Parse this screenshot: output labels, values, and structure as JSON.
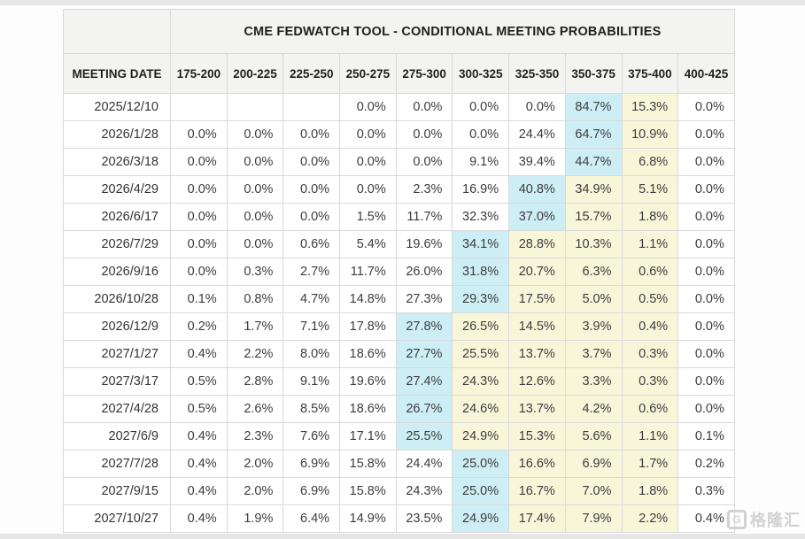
{
  "colors": {
    "highlight_blue": "#cdeef4",
    "highlight_yellow": "#f7f6d9",
    "header_bg": "#f3f3f2"
  },
  "watermark": {
    "logo": "G",
    "text": "格隆汇"
  },
  "chart_data": {
    "type": "table",
    "title": "CME FEDWATCH TOOL - CONDITIONAL MEETING PROBABILITIES",
    "corner_header": "MEETING DATE",
    "columns": [
      "175-200",
      "200-225",
      "225-250",
      "250-275",
      "275-300",
      "300-325",
      "325-350",
      "350-375",
      "375-400",
      "400-425"
    ],
    "rows": [
      {
        "date": "2025/12/10",
        "values": [
          "",
          "",
          "",
          "0.0%",
          "0.0%",
          "0.0%",
          "0.0%",
          "84.7%",
          "15.3%",
          "0.0%"
        ],
        "blue": 7,
        "yellow": [
          8
        ]
      },
      {
        "date": "2026/1/28",
        "values": [
          "0.0%",
          "0.0%",
          "0.0%",
          "0.0%",
          "0.0%",
          "0.0%",
          "24.4%",
          "64.7%",
          "10.9%",
          "0.0%"
        ],
        "blue": 7,
        "yellow": [
          8
        ]
      },
      {
        "date": "2026/3/18",
        "values": [
          "0.0%",
          "0.0%",
          "0.0%",
          "0.0%",
          "0.0%",
          "9.1%",
          "39.4%",
          "44.7%",
          "6.8%",
          "0.0%"
        ],
        "blue": 7,
        "yellow": [
          8
        ]
      },
      {
        "date": "2026/4/29",
        "values": [
          "0.0%",
          "0.0%",
          "0.0%",
          "0.0%",
          "2.3%",
          "16.9%",
          "40.8%",
          "34.9%",
          "5.1%",
          "0.0%"
        ],
        "blue": 6,
        "yellow": [
          7,
          8
        ]
      },
      {
        "date": "2026/6/17",
        "values": [
          "0.0%",
          "0.0%",
          "0.0%",
          "1.5%",
          "11.7%",
          "32.3%",
          "37.0%",
          "15.7%",
          "1.8%",
          "0.0%"
        ],
        "blue": 6,
        "yellow": [
          7,
          8
        ]
      },
      {
        "date": "2026/7/29",
        "values": [
          "0.0%",
          "0.0%",
          "0.6%",
          "5.4%",
          "19.6%",
          "34.1%",
          "28.8%",
          "10.3%",
          "1.1%",
          "0.0%"
        ],
        "blue": 5,
        "yellow": [
          6,
          7,
          8
        ]
      },
      {
        "date": "2026/9/16",
        "values": [
          "0.0%",
          "0.3%",
          "2.7%",
          "11.7%",
          "26.0%",
          "31.8%",
          "20.7%",
          "6.3%",
          "0.6%",
          "0.0%"
        ],
        "blue": 5,
        "yellow": [
          6,
          7,
          8
        ]
      },
      {
        "date": "2026/10/28",
        "values": [
          "0.1%",
          "0.8%",
          "4.7%",
          "14.8%",
          "27.3%",
          "29.3%",
          "17.5%",
          "5.0%",
          "0.5%",
          "0.0%"
        ],
        "blue": 5,
        "yellow": [
          6,
          7,
          8
        ]
      },
      {
        "date": "2026/12/9",
        "values": [
          "0.2%",
          "1.7%",
          "7.1%",
          "17.8%",
          "27.8%",
          "26.5%",
          "14.5%",
          "3.9%",
          "0.4%",
          "0.0%"
        ],
        "blue": 4,
        "yellow": [
          5,
          6,
          7,
          8
        ]
      },
      {
        "date": "2027/1/27",
        "values": [
          "0.4%",
          "2.2%",
          "8.0%",
          "18.6%",
          "27.7%",
          "25.5%",
          "13.7%",
          "3.7%",
          "0.3%",
          "0.0%"
        ],
        "blue": 4,
        "yellow": [
          5,
          6,
          7,
          8
        ]
      },
      {
        "date": "2027/3/17",
        "values": [
          "0.5%",
          "2.8%",
          "9.1%",
          "19.6%",
          "27.4%",
          "24.3%",
          "12.6%",
          "3.3%",
          "0.3%",
          "0.0%"
        ],
        "blue": 4,
        "yellow": [
          5,
          6,
          7,
          8
        ]
      },
      {
        "date": "2027/4/28",
        "values": [
          "0.5%",
          "2.6%",
          "8.5%",
          "18.6%",
          "26.7%",
          "24.6%",
          "13.7%",
          "4.2%",
          "0.6%",
          "0.0%"
        ],
        "blue": 4,
        "yellow": [
          5,
          6,
          7,
          8
        ]
      },
      {
        "date": "2027/6/9",
        "values": [
          "0.4%",
          "2.3%",
          "7.6%",
          "17.1%",
          "25.5%",
          "24.9%",
          "15.3%",
          "5.6%",
          "1.1%",
          "0.1%"
        ],
        "blue": 4,
        "yellow": [
          5,
          6,
          7,
          8
        ]
      },
      {
        "date": "2027/7/28",
        "values": [
          "0.4%",
          "2.0%",
          "6.9%",
          "15.8%",
          "24.4%",
          "25.0%",
          "16.6%",
          "6.9%",
          "1.7%",
          "0.2%"
        ],
        "blue": 5,
        "yellow": [
          6,
          7,
          8
        ]
      },
      {
        "date": "2027/9/15",
        "values": [
          "0.4%",
          "2.0%",
          "6.9%",
          "15.8%",
          "24.3%",
          "25.0%",
          "16.7%",
          "7.0%",
          "1.8%",
          "0.3%"
        ],
        "blue": 5,
        "yellow": [
          6,
          7,
          8
        ]
      },
      {
        "date": "2027/10/27",
        "values": [
          "0.4%",
          "1.9%",
          "6.4%",
          "14.9%",
          "23.5%",
          "24.9%",
          "17.4%",
          "7.9%",
          "2.2%",
          "0.4%"
        ],
        "blue": 5,
        "yellow": [
          6,
          7,
          8
        ]
      }
    ]
  }
}
